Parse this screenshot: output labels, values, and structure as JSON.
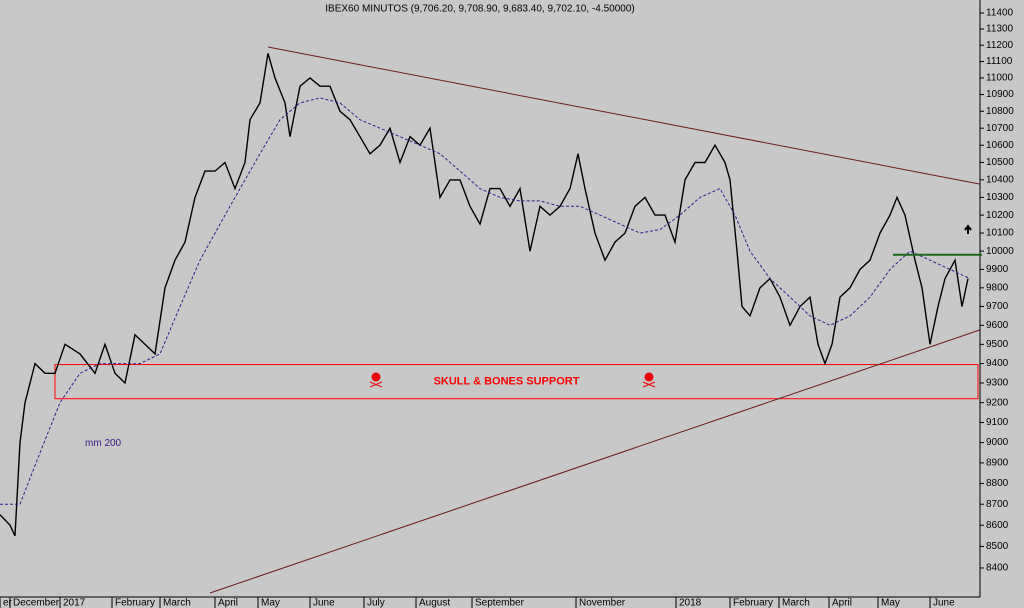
{
  "chart_data": {
    "type": "line",
    "title": "IBEX60 MINUTOS (9,706.20, 9,708.90, 9,683.40, 9,702.10, -4.50000)",
    "log_scale": true,
    "xlim": [
      0,
      490
    ],
    "ylim": [
      8217,
      11482
    ],
    "yticks": [
      8400,
      8500,
      8600,
      8700,
      8800,
      8900,
      9000,
      9100,
      9200,
      9300,
      9400,
      9500,
      9600,
      9700,
      9800,
      9900,
      10000,
      10100,
      10200,
      10300,
      10400,
      10500,
      10600,
      10700,
      10800,
      10900,
      11000,
      11100,
      11200,
      11300,
      11400
    ],
    "xticks": [
      {
        "value": 0,
        "label": "er"
      },
      {
        "value": 5,
        "label": "December"
      },
      {
        "value": 30,
        "label": "2017"
      },
      {
        "value": 56,
        "label": "February"
      },
      {
        "value": 80,
        "label": "March"
      },
      {
        "value": 107.5,
        "label": "April"
      },
      {
        "value": 129,
        "label": "May"
      },
      {
        "value": 155,
        "label": "June"
      },
      {
        "value": 182,
        "label": "July"
      },
      {
        "value": 208,
        "label": "August"
      },
      {
        "value": 236,
        "label": "September"
      },
      {
        "value": 288,
        "label": "November"
      },
      {
        "value": 338,
        "label": "2018"
      },
      {
        "value": 365,
        "label": "February"
      },
      {
        "value": 389.5,
        "label": "March"
      },
      {
        "value": 414.5,
        "label": "April"
      },
      {
        "value": 439,
        "label": "May"
      },
      {
        "value": 465,
        "label": "June"
      }
    ],
    "series": [
      {
        "color": "#000000",
        "x": [
          0,
          5,
          7.5,
          10,
          12.5,
          17.5,
          22.5,
          27.5,
          32.5,
          40,
          47.5,
          52.5,
          57.5,
          62.5,
          67.5,
          72.5,
          77.5,
          82.5,
          87.5,
          92.5,
          97.5,
          102.5,
          107.5,
          112.5,
          117.5,
          122.5,
          125,
          130,
          134,
          137.5,
          142.5,
          145,
          150,
          155,
          160,
          165,
          170,
          175,
          180,
          185,
          190,
          195,
          200,
          205,
          210,
          215,
          220,
          225,
          230,
          235,
          240,
          245,
          250,
          255,
          260,
          265,
          270,
          275,
          280,
          285,
          289,
          292.5,
          297.5,
          302.5,
          307.5,
          312.5,
          317.5,
          322.5,
          327.5,
          332.5,
          337.5,
          342.5,
          347.5,
          352.5,
          357.5,
          362.5,
          365,
          368.5,
          371,
          375,
          380,
          385,
          390,
          395,
          400,
          405,
          409,
          412.5,
          416,
          420,
          425,
          430,
          435,
          440,
          445,
          448.5,
          452.5,
          457.5,
          461,
          465,
          469,
          472.5,
          477.5,
          481,
          484
        ],
        "values": [
          8650,
          8600,
          8550,
          9000,
          9200,
          9400,
          9350,
          9350,
          9500,
          9450,
          9350,
          9500,
          9350,
          9300,
          9550,
          9500,
          9450,
          9800,
          9950,
          10050,
          10300,
          10450,
          10450,
          10500,
          10350,
          10500,
          10750,
          10850,
          11150,
          11000,
          10850,
          10650,
          10950,
          11000,
          10950,
          10950,
          10800,
          10750,
          10650,
          10550,
          10600,
          10700,
          10500,
          10650,
          10600,
          10700,
          10300,
          10400,
          10400,
          10250,
          10150,
          10350,
          10350,
          10250,
          10350,
          10000,
          10250,
          10200,
          10250,
          10350,
          10550,
          10350,
          10100,
          9950,
          10050,
          10100,
          10250,
          10300,
          10200,
          10200,
          10050,
          10400,
          10500,
          10500,
          10600,
          10500,
          10400,
          10000,
          9700,
          9650,
          9800,
          9850,
          9750,
          9600,
          9700,
          9750,
          9500,
          9400,
          9500,
          9750,
          9800,
          9900,
          9950,
          10100,
          10200,
          10300,
          10200,
          9950,
          9800,
          9500,
          9700,
          9850,
          9950,
          9700,
          9850
        ]
      },
      {
        "name": "mm 200",
        "color": "#3a1a8a",
        "dashed": true,
        "x": [
          0,
          10,
          20,
          30,
          40,
          50,
          60,
          70,
          80,
          90,
          100,
          110,
          120,
          130,
          140,
          150,
          160,
          170,
          180,
          190,
          200,
          210,
          220,
          230,
          240,
          250,
          260,
          270,
          280,
          290,
          300,
          310,
          320,
          330,
          340,
          350,
          360,
          367.5,
          375,
          385,
          395,
          405,
          415,
          425,
          435,
          445,
          455,
          465,
          475,
          485
        ],
        "values": [
          8700,
          8700,
          8950,
          9200,
          9350,
          9400,
          9400,
          9400,
          9450,
          9700,
          9950,
          10150,
          10350,
          10550,
          10750,
          10850,
          10880,
          10850,
          10750,
          10700,
          10650,
          10600,
          10550,
          10450,
          10350,
          10300,
          10280,
          10280,
          10250,
          10250,
          10200,
          10150,
          10100,
          10120,
          10200,
          10300,
          10350,
          10200,
          10000,
          9850,
          9750,
          9650,
          9600,
          9650,
          9750,
          9900,
          10000,
          9950,
          9900,
          9850
        ]
      }
    ],
    "trendlines": [
      {
        "color": "#6a1a1a",
        "x": [
          134,
          490
        ],
        "values": [
          11189,
          10376
        ]
      },
      {
        "color": "#6a1a1a",
        "x": [
          105,
          490
        ],
        "values": [
          8285,
          9576
        ]
      },
      {
        "color": "#1a6a1a",
        "x": [
          446.5,
          491
        ],
        "values": [
          9980,
          9980
        ]
      }
    ],
    "support_zone": {
      "label": "SKULL & BONES SUPPORT",
      "color": "#ff0000",
      "x": [
        27.5,
        489
      ],
      "values": [
        9220,
        9395
      ]
    }
  }
}
